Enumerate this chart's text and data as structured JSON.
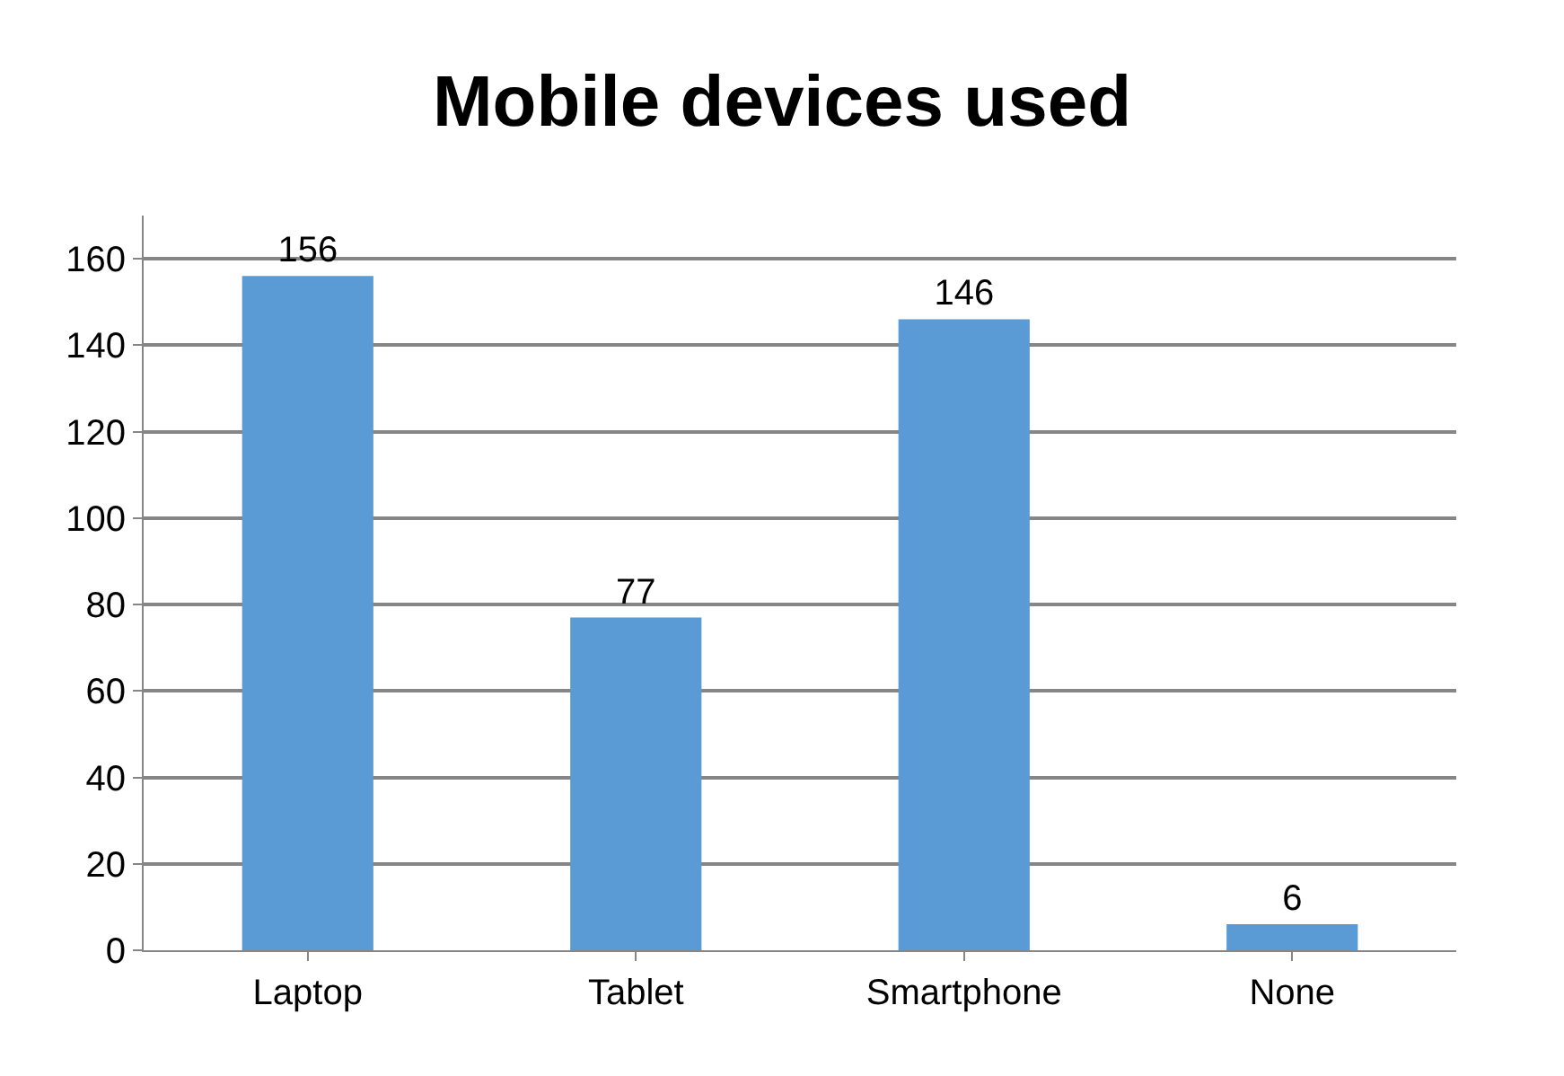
{
  "chart_data": {
    "type": "bar",
    "title": "Mobile devices used",
    "categories": [
      "Laptop",
      "Tablet",
      "Smartphone",
      "None"
    ],
    "values": [
      156,
      77,
      146,
      6
    ],
    "color": "#5b9bd5",
    "ylim": [
      0,
      170
    ],
    "yticks": [
      0,
      20,
      40,
      60,
      80,
      100,
      120,
      140,
      160
    ],
    "grid": "y",
    "data_labels": true
  }
}
